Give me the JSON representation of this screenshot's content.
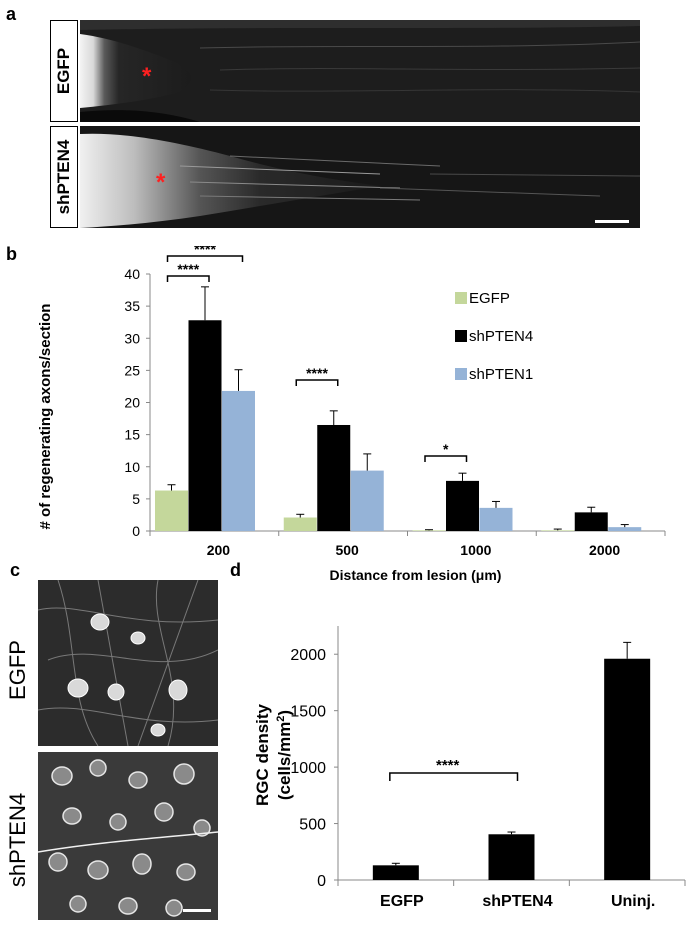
{
  "panels": {
    "a": {
      "letter": "a",
      "labels": [
        "EGFP",
        "shPTEN4"
      ]
    },
    "b": {
      "letter": "b"
    },
    "c": {
      "letter": "c",
      "labels": [
        "EGFP",
        "shPTEN4"
      ]
    },
    "d": {
      "letter": "d"
    }
  },
  "chart_data": [
    {
      "panel": "b",
      "type": "bar",
      "categories": [
        "200",
        "500",
        "1000",
        "2000"
      ],
      "xlabel": "Distance from lesion (μm)",
      "ylabel": "# of regenerating axons/section",
      "ylim": [
        0,
        40
      ],
      "yticks": [
        0,
        5,
        10,
        15,
        20,
        25,
        30,
        35,
        40
      ],
      "legend_position": "right",
      "series": [
        {
          "name": "EGFP",
          "color": "#c4d79b",
          "values": [
            6.3,
            2.1,
            0.1,
            0.1
          ],
          "errors": [
            0.9,
            0.5,
            0.1,
            0.2
          ]
        },
        {
          "name": "shPTEN4",
          "color": "#000000",
          "values": [
            32.8,
            16.5,
            7.8,
            2.9
          ],
          "errors": [
            5.2,
            2.2,
            1.2,
            0.8
          ]
        },
        {
          "name": "shPTEN1",
          "color": "#95b3d7",
          "values": [
            21.8,
            9.4,
            3.6,
            0.6
          ],
          "errors": [
            3.3,
            2.6,
            1.0,
            0.4
          ]
        }
      ],
      "significance": [
        {
          "category": "200",
          "compare": [
            "EGFP",
            "shPTEN4"
          ],
          "label": "****"
        },
        {
          "category": "200",
          "compare": [
            "EGFP",
            "shPTEN1"
          ],
          "label": "****"
        },
        {
          "category": "500",
          "compare": [
            "EGFP",
            "shPTEN4"
          ],
          "label": "****"
        },
        {
          "category": "1000",
          "compare": [
            "EGFP",
            "shPTEN4"
          ],
          "label": "*"
        }
      ]
    },
    {
      "panel": "d",
      "type": "bar",
      "categories": [
        "EGFP",
        "shPTEN4",
        "Uninj."
      ],
      "ylabel_line1": "RGC density",
      "ylabel_line2": "(cells/mm",
      "ylabel_sup": "2",
      "ylabel_close": ")",
      "ylim": [
        0,
        2250
      ],
      "yticks": [
        0,
        500,
        1000,
        1500,
        2000
      ],
      "series": [
        {
          "color": "#000000",
          "values": [
            130,
            405,
            1960
          ],
          "errors": [
            18,
            20,
            145
          ]
        }
      ],
      "significance": [
        {
          "compare": [
            "EGFP",
            "shPTEN4"
          ],
          "label": "****"
        }
      ]
    }
  ]
}
